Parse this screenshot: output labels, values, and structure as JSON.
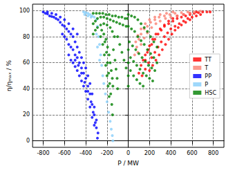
{
  "chart_data": {
    "type": "scatter",
    "x_label": "P / MW",
    "y_label": "η/ηₘₐₓ / %",
    "xlim": [
      -900,
      900
    ],
    "xticks": [
      -800,
      -600,
      -400,
      -200,
      0,
      200,
      400,
      600,
      800
    ],
    "ylim": [
      -5,
      105
    ],
    "yticks": [
      0,
      20,
      40,
      60,
      80,
      100
    ],
    "grid": true,
    "legend": "right",
    "marker": "circle",
    "series": [
      {
        "name": "TT",
        "color": "#ff0000",
        "values": [
          [
            100,
            52
          ],
          [
            120,
            58
          ],
          [
            140,
            62
          ],
          [
            160,
            66
          ],
          [
            190,
            70
          ],
          [
            220,
            74
          ],
          [
            250,
            78
          ],
          [
            280,
            82
          ],
          [
            310,
            85
          ],
          [
            340,
            88
          ],
          [
            380,
            90
          ],
          [
            420,
            92
          ],
          [
            460,
            94
          ],
          [
            500,
            95
          ],
          [
            540,
            96
          ],
          [
            580,
            97
          ],
          [
            620,
            98
          ],
          [
            660,
            98.5
          ],
          [
            700,
            99
          ],
          [
            740,
            99
          ],
          [
            770,
            99
          ],
          [
            130,
            50
          ],
          [
            160,
            55
          ],
          [
            190,
            60
          ],
          [
            220,
            64
          ],
          [
            250,
            68
          ],
          [
            280,
            72
          ],
          [
            310,
            76
          ],
          [
            340,
            80
          ],
          [
            370,
            83
          ],
          [
            400,
            86
          ],
          [
            440,
            88
          ],
          [
            480,
            90
          ],
          [
            520,
            92
          ],
          [
            560,
            94
          ],
          [
            600,
            95
          ],
          [
            640,
            96
          ],
          [
            680,
            97
          ],
          [
            200,
            54
          ],
          [
            230,
            58
          ],
          [
            260,
            62
          ],
          [
            290,
            66
          ],
          [
            320,
            70
          ],
          [
            350,
            74
          ],
          [
            380,
            78
          ],
          [
            410,
            82
          ],
          [
            440,
            85
          ],
          [
            470,
            87
          ],
          [
            500,
            89
          ],
          [
            540,
            91
          ],
          [
            580,
            93
          ],
          [
            160,
            62
          ],
          [
            180,
            68
          ],
          [
            200,
            73
          ],
          [
            230,
            78
          ],
          [
            260,
            82
          ],
          [
            300,
            86
          ],
          [
            340,
            89
          ],
          [
            380,
            92
          ],
          [
            420,
            94
          ],
          [
            460,
            96
          ],
          [
            520,
            97
          ],
          [
            580,
            98
          ],
          [
            640,
            99
          ]
        ]
      },
      {
        "name": "T",
        "color": "#fa8072",
        "values": [
          [
            60,
            66
          ],
          [
            80,
            72
          ],
          [
            100,
            78
          ],
          [
            120,
            82
          ],
          [
            150,
            86
          ],
          [
            180,
            88
          ],
          [
            210,
            91
          ],
          [
            250,
            93
          ],
          [
            290,
            95
          ],
          [
            340,
            96
          ],
          [
            390,
            97
          ],
          [
            440,
            98
          ],
          [
            500,
            98.5
          ],
          [
            560,
            99
          ],
          [
            620,
            99
          ],
          [
            680,
            99.5
          ],
          [
            90,
            68
          ],
          [
            120,
            74
          ],
          [
            150,
            79
          ],
          [
            180,
            83
          ],
          [
            220,
            87
          ],
          [
            260,
            90
          ],
          [
            300,
            92
          ],
          [
            350,
            94
          ],
          [
            400,
            95
          ],
          [
            460,
            96
          ],
          [
            520,
            97
          ],
          [
            580,
            98
          ],
          [
            70,
            76
          ],
          [
            90,
            81
          ],
          [
            120,
            86
          ],
          [
            160,
            90
          ],
          [
            200,
            93
          ],
          [
            250,
            95
          ],
          [
            300,
            97
          ],
          [
            360,
            98
          ],
          [
            420,
            99
          ]
        ]
      },
      {
        "name": "PP",
        "color": "#0000ff",
        "values": [
          [
            -800,
            99
          ],
          [
            -780,
            98
          ],
          [
            -760,
            97.5
          ],
          [
            -740,
            96
          ],
          [
            -720,
            95.5
          ],
          [
            -700,
            95
          ],
          [
            -680,
            94
          ],
          [
            -660,
            93
          ],
          [
            -640,
            91
          ],
          [
            -620,
            89
          ],
          [
            -600,
            88
          ],
          [
            -580,
            86
          ],
          [
            -560,
            84
          ],
          [
            -540,
            82
          ],
          [
            -520,
            80
          ],
          [
            -500,
            76
          ],
          [
            -480,
            72
          ],
          [
            -460,
            68
          ],
          [
            -440,
            64
          ],
          [
            -420,
            60
          ],
          [
            -400,
            56
          ],
          [
            -380,
            50
          ],
          [
            -360,
            44
          ],
          [
            -340,
            36
          ],
          [
            -320,
            26
          ],
          [
            -300,
            16
          ],
          [
            -285,
            6
          ],
          [
            -760,
            99
          ],
          [
            -720,
            98
          ],
          [
            -680,
            97
          ],
          [
            -640,
            95
          ],
          [
            -600,
            93
          ],
          [
            -560,
            90
          ],
          [
            -520,
            86
          ],
          [
            -480,
            82
          ],
          [
            -620,
            82
          ],
          [
            -600,
            80
          ],
          [
            -580,
            78
          ],
          [
            -560,
            74
          ],
          [
            -540,
            72
          ],
          [
            -520,
            70
          ],
          [
            -500,
            66
          ],
          [
            -480,
            64
          ],
          [
            -460,
            60
          ],
          [
            -440,
            56
          ],
          [
            -420,
            52
          ],
          [
            -400,
            48
          ],
          [
            -380,
            42
          ],
          [
            -360,
            36
          ],
          [
            -340,
            28
          ],
          [
            -320,
            20
          ],
          [
            -300,
            10
          ],
          [
            -290,
            2
          ],
          [
            -560,
            66
          ],
          [
            -540,
            62
          ],
          [
            -520,
            60
          ],
          [
            -500,
            57
          ],
          [
            -480,
            54
          ],
          [
            -460,
            50
          ],
          [
            -440,
            46
          ],
          [
            -420,
            42
          ],
          [
            -400,
            38
          ],
          [
            -380,
            32
          ],
          [
            -360,
            26
          ],
          [
            -340,
            18
          ],
          [
            -320,
            12
          ],
          [
            -500,
            62
          ],
          [
            -470,
            58
          ],
          [
            -440,
            52
          ],
          [
            -410,
            45
          ],
          [
            -380,
            38
          ],
          [
            -350,
            30
          ],
          [
            -330,
            22
          ],
          [
            -310,
            14
          ]
        ]
      },
      {
        "name": "P",
        "color": "#87cefa",
        "values": [
          [
            -420,
            99
          ],
          [
            -400,
            98.5
          ],
          [
            -380,
            98
          ],
          [
            -360,
            97
          ],
          [
            -340,
            96
          ],
          [
            -320,
            95
          ],
          [
            -300,
            93
          ],
          [
            -410,
            97
          ],
          [
            -380,
            96
          ],
          [
            -350,
            95
          ],
          [
            -290,
            88
          ],
          [
            -280,
            80
          ],
          [
            -270,
            74
          ],
          [
            -260,
            66
          ],
          [
            -250,
            58
          ],
          [
            -240,
            50
          ],
          [
            -230,
            44
          ],
          [
            -215,
            36
          ],
          [
            -200,
            30
          ],
          [
            -185,
            22
          ],
          [
            -170,
            15
          ],
          [
            -160,
            9
          ],
          [
            -150,
            4
          ],
          [
            -145,
            0
          ],
          [
            -300,
            82
          ],
          [
            -290,
            72
          ],
          [
            -270,
            62
          ]
        ]
      },
      {
        "name": "HSC",
        "color": "#008000",
        "values": [
          [
            -330,
            98
          ],
          [
            -300,
            98
          ],
          [
            -270,
            98
          ],
          [
            -240,
            98
          ],
          [
            -210,
            97
          ],
          [
            -180,
            97
          ],
          [
            -150,
            96
          ],
          [
            -120,
            96
          ],
          [
            -90,
            95
          ],
          [
            -60,
            95
          ],
          [
            -30,
            94
          ],
          [
            -10,
            94
          ],
          [
            -330,
            90
          ],
          [
            -310,
            92
          ],
          [
            -290,
            94
          ],
          [
            -260,
            95
          ],
          [
            -230,
            95
          ],
          [
            -200,
            94
          ],
          [
            -170,
            93
          ],
          [
            -140,
            92
          ],
          [
            -110,
            91
          ],
          [
            -80,
            90
          ],
          [
            -50,
            89
          ],
          [
            -20,
            88
          ],
          [
            -330,
            82
          ],
          [
            -310,
            85
          ],
          [
            -290,
            87
          ],
          [
            -260,
            89
          ],
          [
            -230,
            90
          ],
          [
            -200,
            89
          ],
          [
            -170,
            87
          ],
          [
            -150,
            84
          ],
          [
            -130,
            80
          ],
          [
            -250,
            85
          ],
          [
            -230,
            82
          ],
          [
            -210,
            78
          ],
          [
            -195,
            72
          ],
          [
            -180,
            66
          ],
          [
            -170,
            60
          ],
          [
            -160,
            54
          ],
          [
            -150,
            48
          ],
          [
            -145,
            42
          ],
          [
            -220,
            76
          ],
          [
            -205,
            68
          ],
          [
            -195,
            60
          ],
          [
            -185,
            52
          ],
          [
            -175,
            44
          ],
          [
            -165,
            36
          ],
          [
            -155,
            28
          ],
          [
            -148,
            20
          ],
          [
            -260,
            80
          ],
          [
            -240,
            74
          ],
          [
            -225,
            66
          ],
          [
            -212,
            58
          ],
          [
            -200,
            50
          ],
          [
            -190,
            42
          ],
          [
            -180,
            34
          ],
          [
            -140,
            70
          ],
          [
            -125,
            62
          ],
          [
            -115,
            55
          ],
          [
            -105,
            48
          ],
          [
            -100,
            40
          ],
          [
            -100,
            80
          ],
          [
            -80,
            74
          ],
          [
            -60,
            68
          ],
          [
            -40,
            62
          ],
          [
            -20,
            56
          ],
          [
            0,
            97
          ],
          [
            30,
            96
          ],
          [
            60,
            95
          ],
          [
            90,
            93
          ],
          [
            120,
            90
          ],
          [
            150,
            87
          ],
          [
            180,
            84
          ],
          [
            210,
            80
          ],
          [
            240,
            76
          ],
          [
            270,
            72
          ],
          [
            0,
            88
          ],
          [
            30,
            86
          ],
          [
            60,
            84
          ],
          [
            90,
            80
          ],
          [
            120,
            77
          ],
          [
            150,
            74
          ],
          [
            180,
            70
          ],
          [
            210,
            67
          ],
          [
            240,
            64
          ],
          [
            270,
            60
          ],
          [
            10,
            76
          ],
          [
            40,
            73
          ],
          [
            70,
            70
          ],
          [
            100,
            67
          ],
          [
            130,
            64
          ],
          [
            160,
            61
          ],
          [
            190,
            58
          ],
          [
            220,
            56
          ],
          [
            250,
            54
          ],
          [
            20,
            64
          ],
          [
            50,
            61
          ],
          [
            80,
            58
          ],
          [
            110,
            55
          ],
          [
            140,
            52
          ],
          [
            170,
            50
          ],
          [
            200,
            48
          ],
          [
            230,
            46
          ],
          [
            20,
            54
          ],
          [
            50,
            50
          ],
          [
            80,
            47
          ],
          [
            110,
            44
          ],
          [
            140,
            42
          ],
          [
            0,
            70
          ],
          [
            0,
            60
          ],
          [
            0,
            50
          ],
          [
            0,
            42
          ]
        ]
      }
    ]
  }
}
